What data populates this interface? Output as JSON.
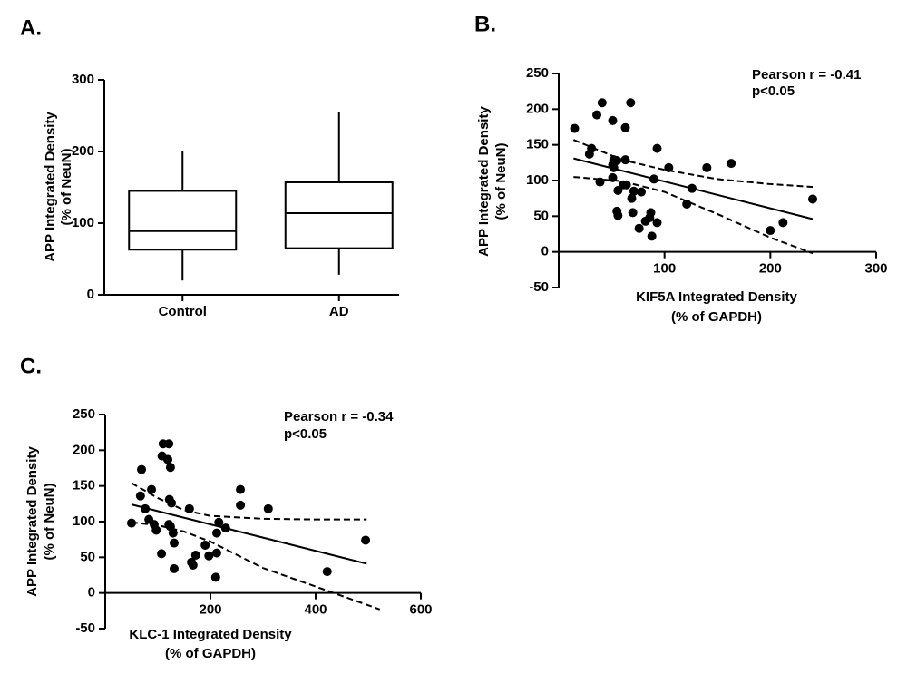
{
  "chart_data": [
    {
      "type": "box",
      "panel_label": "A.",
      "y_label": [
        "APP Integrated Density",
        "(% of NeuN)"
      ],
      "categories": [
        "Control",
        "AD"
      ],
      "boxes": [
        {
          "min": 20,
          "q1": 63,
          "median": 89,
          "q3": 145,
          "max": 200
        },
        {
          "min": 28,
          "q1": 65,
          "median": 114,
          "q3": 157,
          "max": 255
        }
      ],
      "ylim": [
        0,
        300
      ],
      "yticks": [
        0,
        100,
        200,
        300
      ],
      "color": "#000000"
    },
    {
      "type": "scatter",
      "panel_label": "B.",
      "y_label": [
        "APP Integrated Density",
        "(% of NeuN)"
      ],
      "x_label": [
        "KIF5A Integrated Density",
        "(% of GAPDH)"
      ],
      "annotations": [
        "Pearson r = -0.41",
        "p<0.05"
      ],
      "x": [
        15,
        41,
        36,
        51,
        68,
        63,
        31,
        29,
        39,
        51,
        55,
        52,
        51,
        52,
        63,
        93,
        104,
        56,
        61,
        64,
        71,
        78,
        69,
        55,
        56,
        70,
        87,
        86,
        82,
        76,
        88,
        93,
        90,
        121,
        126,
        140,
        163,
        200,
        212,
        240
      ],
      "values": [
        173,
        209,
        192,
        184,
        209,
        174,
        145,
        137,
        98,
        104,
        128,
        118,
        122,
        129,
        129,
        145,
        118,
        86,
        94,
        94,
        85,
        84,
        75,
        57,
        51,
        55,
        55,
        48,
        43,
        33,
        22,
        41,
        102,
        67,
        89,
        118,
        124,
        30,
        41,
        74
      ],
      "lines": [
        {
          "style": "solid",
          "x": [
            14,
            240
          ],
          "values": [
            131,
            46
          ]
        },
        {
          "style": "dashed",
          "x": [
            14,
            60,
            100,
            150,
            200,
            240
          ],
          "values": [
            157,
            129,
            115,
            102,
            95,
            91
          ]
        },
        {
          "style": "dashed",
          "x": [
            14,
            60,
            100,
            150,
            200,
            240
          ],
          "values": [
            105,
            99,
            84,
            53,
            20,
            -2
          ]
        }
      ],
      "xlim": [
        0,
        300
      ],
      "xticks": [
        100,
        200,
        300
      ],
      "ylim": [
        -50,
        250
      ],
      "yticks": [
        -50,
        0,
        50,
        100,
        150,
        200,
        250
      ],
      "color": "#000000"
    },
    {
      "type": "scatter",
      "panel_label": "C.",
      "y_label": [
        "APP Integrated Density",
        "(% of NeuN)"
      ],
      "x_label": [
        "KLC-1 Integrated Density",
        "(% of GAPDH)"
      ],
      "annotations": [
        "Pearson r = -0.34",
        "p<0.05"
      ],
      "x": [
        50,
        69,
        67,
        76,
        88,
        83,
        93,
        97,
        107,
        110,
        121,
        108,
        119,
        124,
        122,
        126,
        121,
        124,
        129,
        131,
        131,
        160,
        164,
        167,
        172,
        190,
        197,
        210,
        212,
        216,
        212,
        229,
        257,
        257,
        310,
        422,
        495
      ],
      "values": [
        98,
        173,
        136,
        118,
        145,
        103,
        96,
        88,
        55,
        209,
        209,
        192,
        187,
        176,
        131,
        126,
        96,
        93,
        84,
        70,
        34,
        118,
        43,
        39,
        53,
        67,
        52,
        22,
        56,
        99,
        84,
        91,
        145,
        123,
        118,
        30,
        74
      ],
      "lines": [
        {
          "style": "solid",
          "x": [
            50,
            497
          ],
          "values": [
            124,
            41
          ]
        },
        {
          "style": "dashed",
          "x": [
            50,
            100,
            150,
            200,
            300,
            400,
            497
          ],
          "values": [
            154,
            133,
            116,
            108,
            104,
            103,
            103
          ]
        },
        {
          "style": "dashed",
          "x": [
            50,
            100,
            150,
            200,
            300,
            400,
            522
          ],
          "values": [
            99,
            95,
            86,
            72,
            35,
            9,
            -23
          ]
        }
      ],
      "xlim": [
        0,
        600
      ],
      "xticks": [
        200,
        400,
        600
      ],
      "ylim": [
        -50,
        250
      ],
      "yticks": [
        -50,
        0,
        50,
        100,
        150,
        200,
        250
      ],
      "color": "#000000"
    }
  ]
}
